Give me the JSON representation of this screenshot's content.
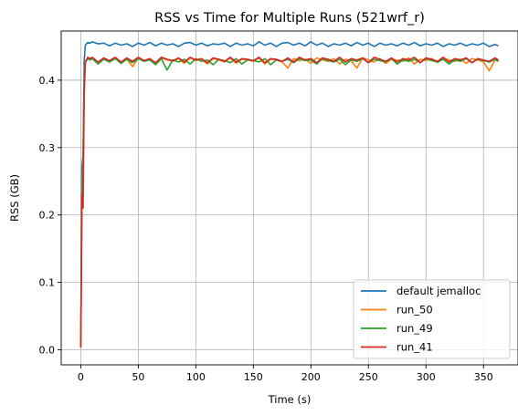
{
  "chart_data": {
    "type": "line",
    "title": "RSS vs Time for Multiple Runs (521wrf_r)",
    "xlabel": "Time (s)",
    "ylabel": "RSS (GB)",
    "xlim": [
      -17,
      380
    ],
    "ylim": [
      -0.0225,
      0.473
    ],
    "xticks": [
      0,
      50,
      100,
      150,
      200,
      250,
      300,
      350
    ],
    "yticks": [
      0.0,
      0.1,
      0.2,
      0.3,
      0.4
    ],
    "xtick_labels": [
      "0",
      "50",
      "100",
      "150",
      "200",
      "250",
      "300",
      "350"
    ],
    "ytick_labels": [
      "0.0",
      "0.1",
      "0.2",
      "0.3",
      "0.4"
    ],
    "grid": true,
    "legend_position": "lower right",
    "series": [
      {
        "name": "default jemalloc",
        "color": "#1f77b4",
        "x": [
          0,
          1,
          2,
          3,
          4,
          6,
          8,
          10,
          15,
          20,
          25,
          30,
          35,
          40,
          45,
          50,
          55,
          60,
          65,
          70,
          75,
          80,
          85,
          90,
          95,
          100,
          105,
          110,
          115,
          120,
          125,
          130,
          135,
          140,
          145,
          150,
          155,
          160,
          165,
          170,
          175,
          180,
          185,
          190,
          195,
          200,
          205,
          210,
          215,
          220,
          225,
          230,
          235,
          240,
          245,
          250,
          255,
          260,
          265,
          270,
          275,
          280,
          285,
          290,
          295,
          300,
          305,
          310,
          315,
          320,
          325,
          330,
          335,
          340,
          345,
          350,
          355,
          360,
          363
        ],
        "y": [
          0.01,
          0.27,
          0.29,
          0.43,
          0.452,
          0.456,
          0.455,
          0.457,
          0.454,
          0.455,
          0.451,
          0.455,
          0.452,
          0.454,
          0.45,
          0.455,
          0.452,
          0.456,
          0.451,
          0.455,
          0.452,
          0.454,
          0.45,
          0.455,
          0.456,
          0.452,
          0.455,
          0.451,
          0.454,
          0.453,
          0.455,
          0.45,
          0.455,
          0.452,
          0.454,
          0.451,
          0.457,
          0.452,
          0.455,
          0.45,
          0.455,
          0.456,
          0.452,
          0.455,
          0.451,
          0.457,
          0.452,
          0.455,
          0.45,
          0.454,
          0.452,
          0.455,
          0.451,
          0.456,
          0.452,
          0.455,
          0.45,
          0.455,
          0.452,
          0.454,
          0.451,
          0.455,
          0.452,
          0.456,
          0.451,
          0.454,
          0.452,
          0.455,
          0.45,
          0.454,
          0.452,
          0.455,
          0.451,
          0.454,
          0.452,
          0.455,
          0.45,
          0.453,
          0.451
        ]
      },
      {
        "name": "run_50",
        "color": "#ff7f0e",
        "x": [
          0,
          1,
          2,
          3,
          4,
          6,
          8,
          10,
          15,
          20,
          25,
          30,
          35,
          40,
          45,
          50,
          55,
          60,
          65,
          70,
          75,
          80,
          85,
          90,
          95,
          100,
          105,
          110,
          115,
          120,
          125,
          130,
          135,
          140,
          145,
          150,
          155,
          160,
          165,
          170,
          175,
          180,
          185,
          190,
          195,
          200,
          205,
          210,
          215,
          220,
          225,
          230,
          235,
          240,
          245,
          250,
          255,
          260,
          265,
          270,
          275,
          280,
          285,
          290,
          295,
          300,
          305,
          310,
          315,
          320,
          325,
          330,
          335,
          340,
          345,
          350,
          355,
          360,
          363
        ],
        "y": [
          0.005,
          0.22,
          0.28,
          0.4,
          0.428,
          0.433,
          0.431,
          0.433,
          0.425,
          0.432,
          0.428,
          0.433,
          0.426,
          0.432,
          0.42,
          0.433,
          0.428,
          0.431,
          0.424,
          0.433,
          0.43,
          0.428,
          0.432,
          0.425,
          0.433,
          0.429,
          0.431,
          0.424,
          0.432,
          0.43,
          0.427,
          0.433,
          0.425,
          0.431,
          0.43,
          0.428,
          0.433,
          0.424,
          0.431,
          0.43,
          0.427,
          0.418,
          0.432,
          0.429,
          0.431,
          0.425,
          0.433,
          0.43,
          0.428,
          0.432,
          0.424,
          0.431,
          0.429,
          0.418,
          0.433,
          0.43,
          0.427,
          0.432,
          0.425,
          0.431,
          0.43,
          0.428,
          0.433,
          0.424,
          0.431,
          0.429,
          0.432,
          0.426,
          0.433,
          0.43,
          0.428,
          0.431,
          0.425,
          0.432,
          0.43,
          0.427,
          0.414,
          0.43,
          0.428
        ]
      },
      {
        "name": "run_49",
        "color": "#2ca02c",
        "x": [
          0,
          1,
          2,
          3,
          4,
          6,
          8,
          10,
          15,
          20,
          25,
          30,
          35,
          40,
          45,
          50,
          55,
          60,
          65,
          70,
          75,
          80,
          85,
          90,
          95,
          100,
          105,
          110,
          115,
          120,
          125,
          130,
          135,
          140,
          145,
          150,
          155,
          160,
          165,
          170,
          175,
          180,
          185,
          190,
          195,
          200,
          205,
          210,
          215,
          220,
          225,
          230,
          235,
          240,
          245,
          250,
          255,
          260,
          265,
          270,
          275,
          280,
          285,
          290,
          295,
          300,
          305,
          310,
          315,
          320,
          325,
          330,
          335,
          340,
          345,
          350,
          355,
          360,
          363
        ],
        "y": [
          0.004,
          0.21,
          0.27,
          0.4,
          0.427,
          0.432,
          0.43,
          0.432,
          0.424,
          0.431,
          0.427,
          0.432,
          0.425,
          0.431,
          0.426,
          0.432,
          0.428,
          0.43,
          0.423,
          0.432,
          0.415,
          0.43,
          0.427,
          0.431,
          0.424,
          0.432,
          0.428,
          0.43,
          0.423,
          0.431,
          0.429,
          0.426,
          0.432,
          0.424,
          0.43,
          0.429,
          0.427,
          0.432,
          0.423,
          0.43,
          0.428,
          0.431,
          0.426,
          0.432,
          0.429,
          0.43,
          0.424,
          0.432,
          0.429,
          0.427,
          0.431,
          0.423,
          0.43,
          0.428,
          0.432,
          0.426,
          0.431,
          0.429,
          0.427,
          0.432,
          0.424,
          0.43,
          0.428,
          0.431,
          0.426,
          0.432,
          0.429,
          0.427,
          0.431,
          0.424,
          0.43,
          0.428,
          0.432,
          0.426,
          0.431,
          0.429,
          0.427,
          0.431,
          0.428
        ]
      },
      {
        "name": "run_41",
        "color": "#d62728",
        "x": [
          0,
          1,
          2,
          3,
          4,
          6,
          8,
          10,
          15,
          20,
          25,
          30,
          35,
          40,
          45,
          50,
          55,
          60,
          65,
          70,
          75,
          80,
          85,
          90,
          95,
          100,
          105,
          110,
          115,
          120,
          125,
          130,
          135,
          140,
          145,
          150,
          155,
          160,
          165,
          170,
          175,
          180,
          185,
          190,
          195,
          200,
          205,
          210,
          215,
          220,
          225,
          230,
          235,
          240,
          245,
          250,
          255,
          260,
          265,
          270,
          275,
          280,
          285,
          290,
          295,
          300,
          305,
          310,
          315,
          320,
          325,
          330,
          335,
          340,
          345,
          350,
          355,
          360,
          363
        ],
        "y": [
          0.003,
          0.23,
          0.21,
          0.38,
          0.426,
          0.434,
          0.432,
          0.434,
          0.427,
          0.433,
          0.429,
          0.434,
          0.427,
          0.433,
          0.428,
          0.434,
          0.429,
          0.432,
          0.426,
          0.434,
          0.431,
          0.429,
          0.433,
          0.427,
          0.434,
          0.43,
          0.432,
          0.426,
          0.433,
          0.431,
          0.428,
          0.434,
          0.427,
          0.432,
          0.431,
          0.429,
          0.434,
          0.426,
          0.432,
          0.431,
          0.428,
          0.433,
          0.427,
          0.434,
          0.43,
          0.432,
          0.426,
          0.433,
          0.431,
          0.428,
          0.434,
          0.427,
          0.432,
          0.43,
          0.433,
          0.426,
          0.434,
          0.431,
          0.428,
          0.433,
          0.427,
          0.432,
          0.43,
          0.434,
          0.426,
          0.433,
          0.431,
          0.428,
          0.434,
          0.427,
          0.432,
          0.43,
          0.433,
          0.426,
          0.432,
          0.43,
          0.428,
          0.433,
          0.43
        ]
      }
    ]
  }
}
